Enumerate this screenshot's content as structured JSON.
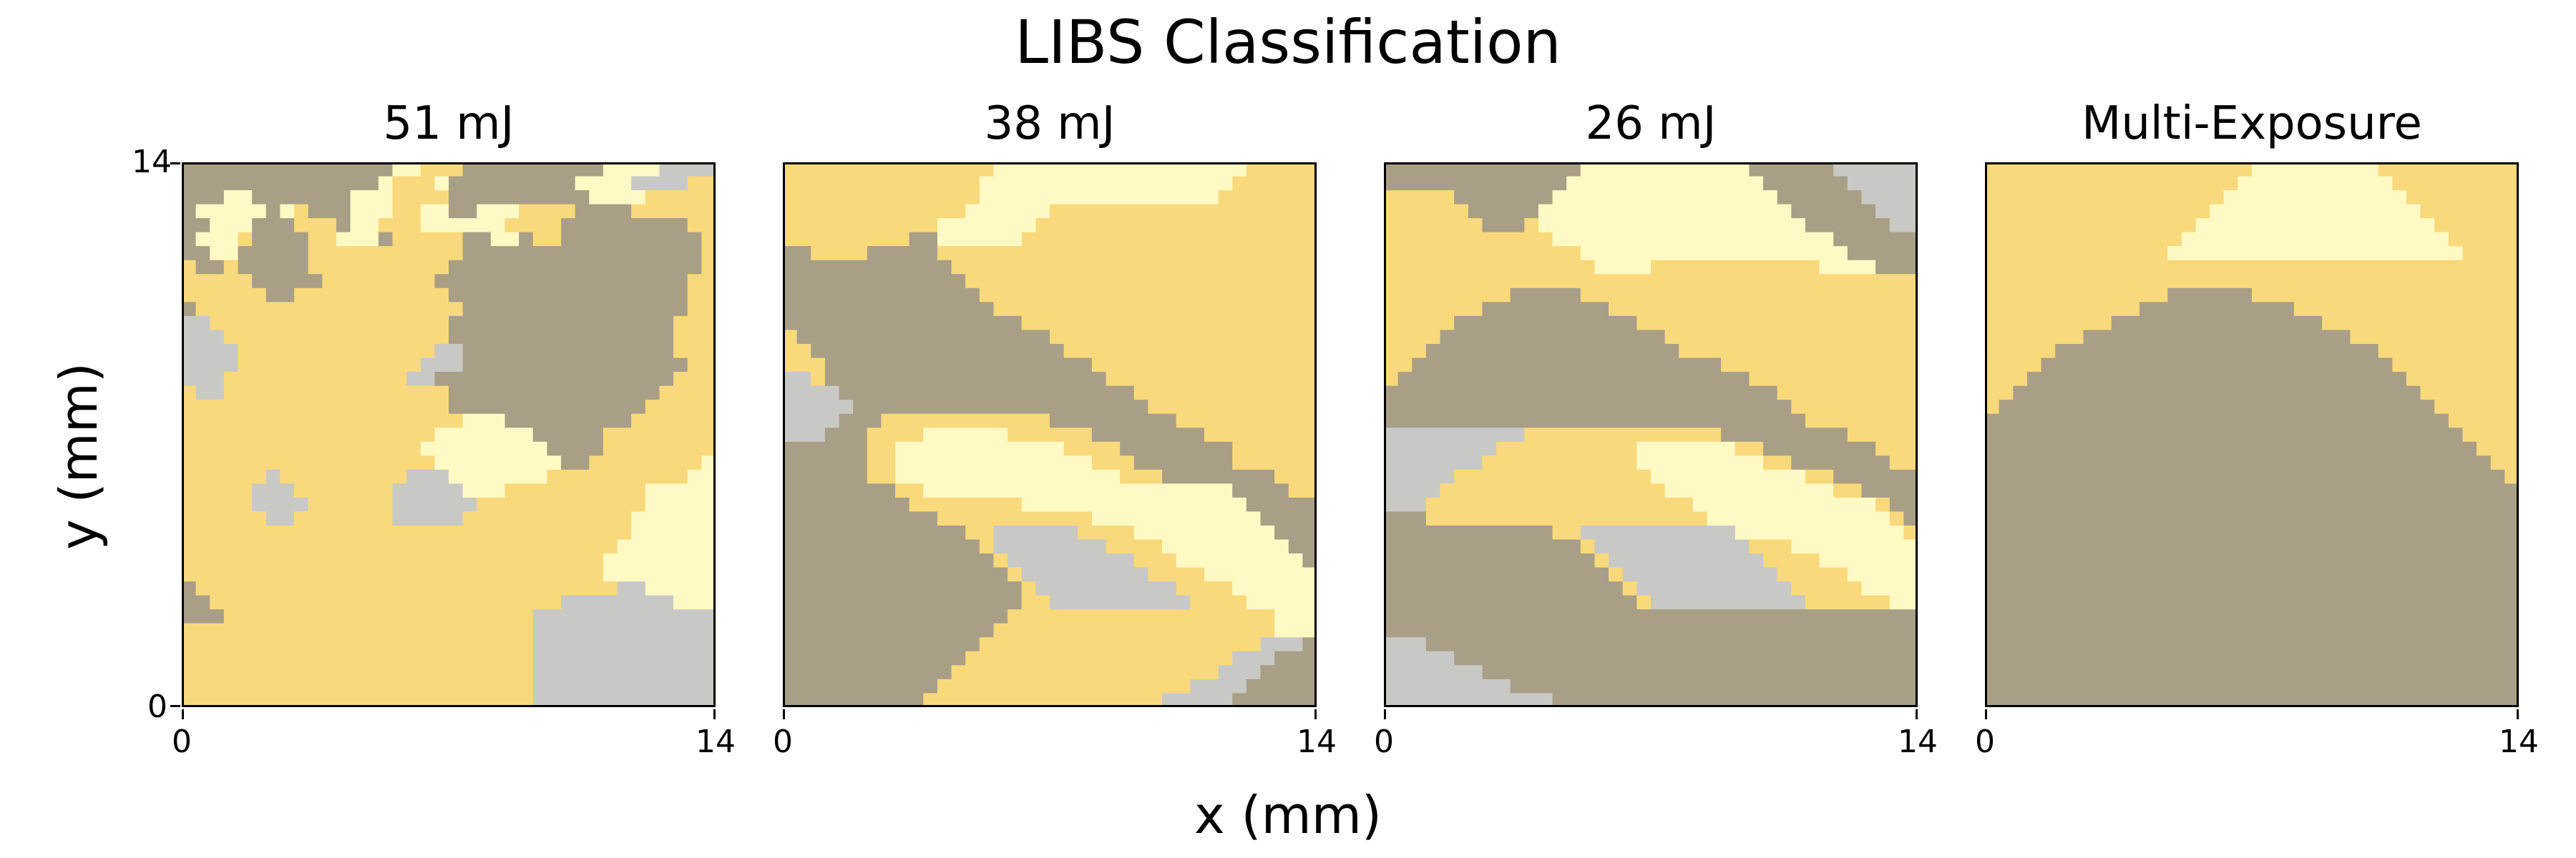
{
  "chart_data": {
    "type": "heatmap",
    "title": "LIBS Classification",
    "xlabel": "x (mm)",
    "ylabel": "y (mm)",
    "xlim": [
      0,
      14
    ],
    "ylim": [
      0,
      14
    ],
    "grid": false,
    "class_colors": [
      "#a89f86",
      "#c8c9c5",
      "#f9d97c",
      "#fffac4"
    ],
    "panels": [
      {
        "title": "51 mJ",
        "x_tick_labels": [
          "0",
          "14"
        ],
        "y_tick_labels": [
          "0",
          "14"
        ],
        "cells": [
          "00000000000000033222000000000033331111",
          "00000000000000322230000000003333111122",
          "00033000000033322220000000000333322222",
          "03333303200033322330033322220000222222",
          "00333000222033222333333222200000000022",
          "03332000022333022222003302200000000002",
          "00330000022222222222000000000000000002",
          "20020000022222222220000000000000000002",
          "22222000002222222200000000000000000022",
          "22222200222222222220000000000000000022",
          "02222222222222222222000000000000000022",
          "11222222222222222220000000000000000222",
          "11122222222222222220000000000000000222",
          "11112222222222222211000000000000000222",
          "11112222222222222111000000000000000022",
          "11122222222222221100000000000000000222",
          "21122222222222222220000000000000002222",
          "22222222222222222220000000000000022222",
          "22222222222222222222333000000000222222",
          "22222222222222222233333330000022222222",
          "22222222222222222333333333000022222222",
          "22222222222222222233333333300222222223",
          "22222212222222221113333333222222222233",
          "22222111222222211111333222222222233333",
          "22222111122222211111122222222222233333",
          "22222211222222211111222222222222333333",
          "22222222222222222222222222222222333333",
          "22222222222222222222222222222223333333",
          "22222222222222222222222222222233333333",
          "22222222222222222222222222222233333333",
          "02222222222222222222222222222221133333",
          "00222222222222222222222222211111111333",
          "00022222222222222222222221111111111111",
          "22222222222222222222222221111111111111",
          "22222222222222222222222221111111111111",
          "22222222222222222222222221111111111111",
          "22222222222222222222222221111111111111",
          "22222222222222222222222221111111111111",
          "22222222222222222222222221111111111111"
        ]
      },
      {
        "title": "38 mJ",
        "x_tick_labels": [
          "0",
          "14"
        ],
        "y_tick_labels": [
          "0",
          "14"
        ],
        "cells": [
          "22222222222222233333333333333333322222",
          "22222222222222333333333333333333222222",
          "22222222222222333333333333333332222222",
          "22222222222223333332222222222222222222",
          "22222222222333333322222222222222222222",
          "22222222200333333222222222222222222222",
          "00222200000222222222222222222222222222",
          "00000000000022222222222222222222222222",
          "00000000000002222222222222222222222222",
          "00000000000000222222222222222222222222",
          "00000000000000022222222222222222222222",
          "00000000000000000222222222222222222222",
          "20000000000000000002222222222222222222",
          "22000000000000000000222222222222222222",
          "22200000000000000000002222222222222222",
          "11200000000000000000000222222222222222",
          "11110000000000000000000002222222222222",
          "11111000000000000000000000222222222222",
          "11110002222222222220000000002222222222",
          "11100022223333332222220000000022222222",
          "00000022333333333333222200000000222222",
          "00000022333333333333332220000000222222",
          "00000022333333333333333322200000000222",
          "00000000223333333333333333333333000022",
          "00000000022222222333333333333333300000",
          "00000000000222222222223333333333330000",
          "00000000000002211111122223333333333000",
          "00000000000000211111111222233333333300",
          "00000000000000021111111112223333333330",
          "00000000000000002111111111222233333333",
          "00000000000000000211111111112222333333",
          "00000000000000000221111111111222233333",
          "00000000000000002222222222222222222333",
          "00000000000000022222222222222222222333",
          "00000000000000222222222222222222221110",
          "00000000000002222222222222222222111000",
          "00000000000022222222222222222221110000",
          "00000000000222222222222222222111100000",
          "00000000002222222222222222211111000000"
        ]
      },
      {
        "title": "26 mJ",
        "x_tick_labels": [
          "0",
          "14"
        ],
        "y_tick_labels": [
          "0",
          "14"
        ],
        "cells": [
          "00000000000000333333333333000000111111",
          "00000000000003333333333333300000011111",
          "22222000000033333333333333330000001111",
          "22222200000333333333333333333000000111",
          "22222220002333333333333333333300000011",
          "22222222222233333333333333333333000000",
          "22222222222222333333333333333333300000",
          "22222222222222233332222222222223333000",
          "22222222222222222222222222222222222222",
          "22222222200000222222222222222222222222",
          "22222220000000002222222222222222222222",
          "22222000000000000022222222222222222222",
          "22220000000000000000222222222222222222",
          "22200000000000000000022222222222222222",
          "22000000000000000000000022222222222222",
          "20000000000000000000000000222222222222",
          "00000000000000000000000000002222222222",
          "00000000000000000000000000000222222222",
          "00000000000000000000000000000022222222",
          "11111111112222222222222200000000022222",
          "11111111222222222233333332200000000222",
          "11111112222222222233333333322000000022",
          "11111222222222222223333333333322000000",
          "11112222222222222222333333333333220000",
          "11122222222222222222223333333333333200",
          "00022222222222222222222333333333333320",
          "00000000000022111111111113333333333332",
          "00000000000000211111111111222333333333",
          "00000000000000021111111111122223333333",
          "00000000000000002111111111112222233333",
          "00000000000000000211111111111222223333",
          "00000000000000000021111111111122222233",
          "00000000000000000000000000000000000000",
          "00000000000000000000000000000000000000",
          "11100000000000000000000000000000000000",
          "11111000000000000000000000000000000000",
          "11111110000000000000000000000000000000",
          "11111111100000000000000000000000000000",
          "11111111111100000000000000000000000000"
        ]
      },
      {
        "title": "Multi-Exposure",
        "x_tick_labels": [
          "0",
          "14"
        ],
        "y_tick_labels": [
          "0",
          "14"
        ],
        "cells": [
          "22222222222222222223333333332222222222",
          "22222222222222222233333333333222222222",
          "22222222222222222333333333333322222222",
          "22222222222222223333333333333332222222",
          "22222222222222233333333333333333222222",
          "22222222222222333333333333333333322222",
          "22222222222223333333333333333333332222",
          "22222222222222222222222222222222222222",
          "22222222222222222222222222222222222222",
          "22222222222220000002222222222222222222",
          "22222222222000000000002222222222222222",
          "22222222200000000000000022222222222222",
          "22222220000000000000000000222222222222",
          "22222000000000000000000000002222222222",
          "22220000000000000000000000000222222222",
          "22200000000000000000000000000022222222",
          "22000000000000000000000000000002222222",
          "20000000000000000000000000000000222222",
          "00000000000000000000000000000000022222",
          "00000000000000000000000000000000002222",
          "00000000000000000000000000000000000222",
          "00000000000000000000000000000000000022",
          "00000000000000000000000000000000000002",
          "00000000000000000000000000000000000000",
          "00000000000000000000000000000000000000",
          "00000000000000000000000000000000000000",
          "00000000000000000000000000000000000000",
          "00000000000000000000000000000000000000",
          "00000000000000000000000000000000000000",
          "00000000000000000000000000000000000000",
          "00000000000000000000000000000000000000",
          "00000000000000000000000000000000000000",
          "00000000000000000000000000000000000000",
          "00000000000000000000000000000000000000",
          "00000000000000000000000000000000000000",
          "00000000000000000000000000000000000000",
          "00000000000000000000000000000000000000",
          "00000000000000000000000000000000000000",
          "00000000000000000000000000000000000000"
        ]
      }
    ]
  }
}
